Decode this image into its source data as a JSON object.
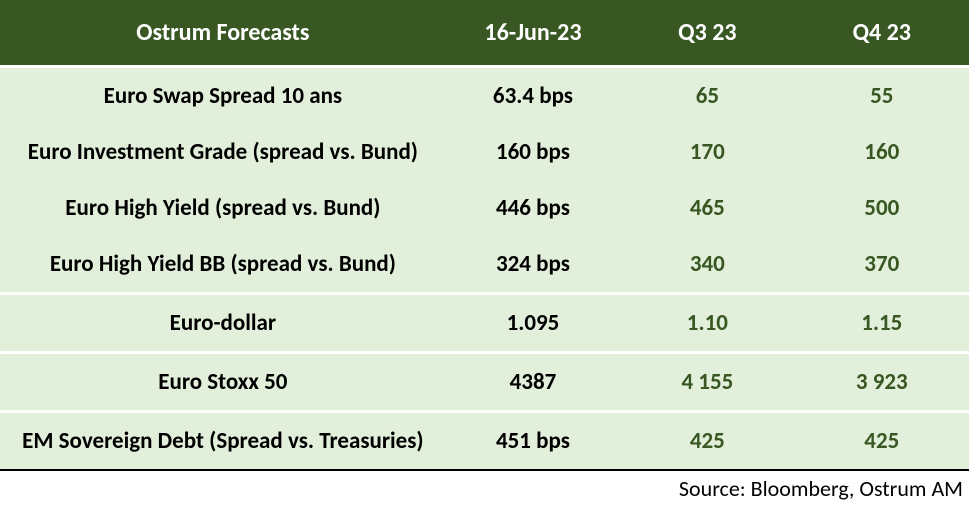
{
  "table": {
    "header": {
      "title": "Ostrum Forecasts",
      "date": "16-Jun-23",
      "q3": "Q3 23",
      "q4": "Q4 23"
    },
    "header_bg": "#385723",
    "header_fg": "#ffffff",
    "row_bg": "#e2efda",
    "label_color": "#000000",
    "current_color": "#000000",
    "forecast_color": "#385723",
    "divider_color": "#ffffff",
    "bottom_rule_color": "#000000",
    "font_size_header": 24,
    "font_size_body": 23,
    "font_weight": 700,
    "col_widths_pct": [
      46,
      18,
      18,
      18
    ],
    "sections": [
      {
        "rows": [
          {
            "label": "Euro Swap Spread 10 ans",
            "current": "63.4 bps",
            "q3": "65",
            "q4": "55"
          },
          {
            "label": "Euro Investment Grade (spread vs. Bund)",
            "current": "160 bps",
            "q3": "170",
            "q4": "160"
          },
          {
            "label": "Euro High Yield (spread vs. Bund)",
            "current": "446 bps",
            "q3": "465",
            "q4": "500"
          },
          {
            "label": "Euro High Yield BB (spread vs. Bund)",
            "current": "324 bps",
            "q3": "340",
            "q4": "370"
          }
        ]
      },
      {
        "rows": [
          {
            "label": "Euro-dollar",
            "current": "1.095",
            "q3": "1.10",
            "q4": "1.15"
          }
        ]
      },
      {
        "rows": [
          {
            "label": "Euro Stoxx 50",
            "current": "4387",
            "q3": "4 155",
            "q4": "3 923"
          }
        ]
      },
      {
        "rows": [
          {
            "label": "EM Sovereign Debt  (Spread vs. Treasuries)",
            "current": "451 bps",
            "q3": "425",
            "q4": "425"
          }
        ]
      }
    ]
  },
  "source": "Source: Bloomberg, Ostrum AM"
}
